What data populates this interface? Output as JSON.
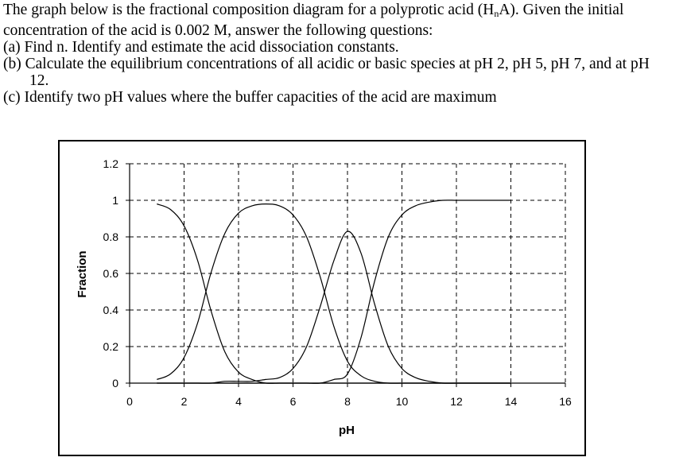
{
  "question": {
    "line1_before": "The graph below is the fractional composition diagram for a polyprotic acid (H",
    "line1_sub": "n",
    "line1_after": "A). Given the initial",
    "line2": "concentration of the acid is 0.002 M, answer the following questions:",
    "part_a": "(a) Find n. Identify and estimate the acid dissociation constants.",
    "part_b_1": "(b) Calculate the equilibrium concentrations of all acidic or basic species at pH 2, pH 5, pH 7, and at pH",
    "part_b_2": "12.",
    "part_c": "(c) Identify two pH values where the buffer capacities of the acid are maximum"
  },
  "chart_data": {
    "type": "line",
    "xlabel": "pH",
    "ylabel": "Fraction",
    "xlim": [
      0,
      16
    ],
    "ylim": [
      0,
      1.2
    ],
    "x_ticks": [
      "0",
      "2",
      "4",
      "6",
      "8",
      "10",
      "12",
      "14",
      "16"
    ],
    "y_ticks": [
      "0",
      "0.2",
      "0.4",
      "0.6",
      "0.8",
      "1",
      "1.2"
    ],
    "grid": true,
    "grid_style": "dashed",
    "line_color": "#000000",
    "x": [
      1,
      1.5,
      2,
      2.5,
      3,
      3.5,
      4,
      4.5,
      5,
      5.5,
      6,
      6.5,
      7,
      7.5,
      8,
      8.5,
      9,
      9.5,
      10,
      10.5,
      11,
      11.5,
      12,
      12.5,
      13,
      13.5,
      14
    ],
    "series": [
      {
        "values": [
          0.98,
          0.95,
          0.86,
          0.67,
          0.39,
          0.17,
          0.06,
          0.02,
          0.0,
          0.0,
          0.0,
          0.0,
          0.0,
          0.0,
          0.0,
          0.0,
          0.0,
          0.0,
          0.0,
          0.0,
          0.0,
          0.0,
          0.0,
          0.0,
          0.0,
          0.0,
          0.0
        ]
      },
      {
        "values": [
          0.02,
          0.05,
          0.14,
          0.33,
          0.61,
          0.82,
          0.93,
          0.97,
          0.98,
          0.97,
          0.92,
          0.8,
          0.58,
          0.31,
          0.12,
          0.04,
          0.01,
          0.0,
          0.0,
          0.0,
          0.0,
          0.0,
          0.0,
          0.0,
          0.0,
          0.0,
          0.0
        ]
      },
      {
        "values": [
          0.0,
          0.0,
          0.0,
          0.0,
          0.0,
          0.01,
          0.01,
          0.01,
          0.02,
          0.03,
          0.08,
          0.2,
          0.42,
          0.67,
          0.83,
          0.71,
          0.43,
          0.2,
          0.08,
          0.03,
          0.01,
          0.0,
          0.0,
          0.0,
          0.0,
          0.0,
          0.0
        ]
      },
      {
        "values": [
          0.0,
          0.0,
          0.0,
          0.0,
          0.0,
          0.0,
          0.0,
          0.0,
          0.0,
          0.0,
          0.0,
          0.0,
          0.0,
          0.02,
          0.05,
          0.25,
          0.56,
          0.8,
          0.92,
          0.97,
          0.99,
          1.0,
          1.0,
          1.0,
          1.0,
          1.0,
          1.0
        ]
      }
    ]
  }
}
